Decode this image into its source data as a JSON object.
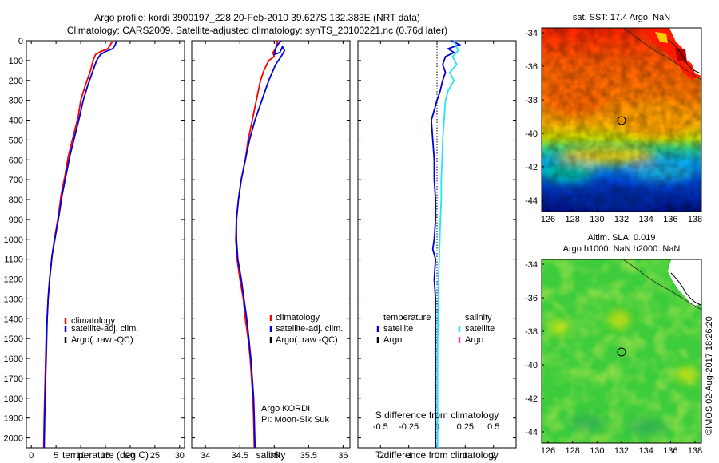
{
  "header": {
    "title_line1": "Argo profile: kordi 3900197_228 20-Feb-2010 39.627S 132.383E (NRT data)",
    "title_line2": "Climatology: CARS2009. Satellite-adjusted climatology: synTS_20100221.nc (0.76d later)"
  },
  "colors": {
    "climatology": "#ff0000",
    "satellite": "#0000dd",
    "argo": "#000000",
    "sal_satellite": "#22e5ee",
    "sal_argo": "#ff33cc"
  },
  "chart_data": [
    {
      "type": "line",
      "panel": "temperature",
      "xlabel": "temperature (deg C)",
      "ylabel": "",
      "xlim": [
        -1,
        31
      ],
      "ylim": [
        2050,
        0
      ],
      "xticks": [
        0,
        5,
        10,
        15,
        20,
        25,
        30
      ],
      "yticks": [
        0,
        100,
        200,
        300,
        400,
        500,
        600,
        700,
        800,
        900,
        1000,
        1100,
        1200,
        1300,
        1400,
        1500,
        1600,
        1700,
        1800,
        1900,
        2000
      ],
      "legend": [
        "climatology",
        "satellite-adj. clim.",
        "Argo(..raw -QC)"
      ],
      "series": [
        {
          "name": "climatology",
          "points": [
            [
              16.5,
              0
            ],
            [
              16.0,
              20
            ],
            [
              15.5,
              40
            ],
            [
              14.0,
              55
            ],
            [
              13.0,
              70
            ],
            [
              12.5,
              100
            ],
            [
              12.0,
              150
            ],
            [
              11.0,
              220
            ],
            [
              10.0,
              300
            ],
            [
              9.5,
              380
            ],
            [
              8.5,
              480
            ],
            [
              7.5,
              580
            ],
            [
              6.8,
              680
            ],
            [
              6.0,
              780
            ],
            [
              5.5,
              880
            ],
            [
              4.8,
              980
            ],
            [
              4.2,
              1080
            ],
            [
              3.7,
              1200
            ],
            [
              3.4,
              1300
            ],
            [
              3.2,
              1400
            ],
            [
              3.0,
              1500
            ],
            [
              2.9,
              1600
            ],
            [
              2.8,
              1700
            ],
            [
              2.7,
              1800
            ],
            [
              2.6,
              1900
            ],
            [
              2.5,
              2050
            ]
          ]
        },
        {
          "name": "satellite-adj. clim.",
          "points": [
            [
              17.2,
              0
            ],
            [
              17.0,
              20
            ],
            [
              16.5,
              40
            ],
            [
              15.0,
              55
            ],
            [
              14.0,
              70
            ],
            [
              13.2,
              100
            ],
            [
              12.5,
              150
            ],
            [
              11.5,
              220
            ],
            [
              10.5,
              300
            ],
            [
              9.8,
              380
            ],
            [
              8.8,
              480
            ],
            [
              7.8,
              580
            ],
            [
              7.0,
              680
            ],
            [
              6.2,
              780
            ],
            [
              5.6,
              880
            ],
            [
              4.9,
              980
            ],
            [
              4.2,
              1080
            ],
            [
              3.7,
              1200
            ],
            [
              3.4,
              1300
            ],
            [
              3.2,
              1400
            ],
            [
              3.1,
              1500
            ],
            [
              3.0,
              1600
            ],
            [
              2.9,
              1700
            ],
            [
              2.8,
              1800
            ],
            [
              2.7,
              1900
            ],
            [
              2.6,
              2050
            ]
          ]
        }
      ]
    },
    {
      "type": "line",
      "panel": "salinity",
      "xlabel": "salinity",
      "ylabel": "",
      "xlim": [
        33.8,
        36.1
      ],
      "ylim": [
        2050,
        0
      ],
      "xticks": [
        34,
        34.5,
        35,
        35.5,
        36
      ],
      "xticklabels": [
        "34",
        "34.5",
        "35",
        "35.5",
        "36"
      ],
      "legend": [
        "climatology",
        "satellite-adj. clim.",
        "Argo(..raw -QC)"
      ],
      "annotation_line1": "Argo KORDI",
      "annotation_line2": "PI: Moon-Sik Suk",
      "series": [
        {
          "name": "climatology",
          "points": [
            [
              35.05,
              0
            ],
            [
              35.02,
              40
            ],
            [
              34.98,
              60
            ],
            [
              35.0,
              80
            ],
            [
              34.92,
              100
            ],
            [
              34.85,
              150
            ],
            [
              34.8,
              200
            ],
            [
              34.74,
              300
            ],
            [
              34.68,
              400
            ],
            [
              34.62,
              500
            ],
            [
              34.58,
              600
            ],
            [
              34.52,
              700
            ],
            [
              34.48,
              800
            ],
            [
              34.45,
              900
            ],
            [
              34.44,
              1000
            ],
            [
              34.46,
              1100
            ],
            [
              34.5,
              1200
            ],
            [
              34.55,
              1300
            ],
            [
              34.58,
              1400
            ],
            [
              34.62,
              1500
            ],
            [
              34.65,
              1600
            ],
            [
              34.67,
              1700
            ],
            [
              34.69,
              1800
            ],
            [
              34.7,
              1900
            ],
            [
              34.71,
              2050
            ]
          ]
        },
        {
          "name": "satellite-adj. clim.",
          "points": [
            [
              35.1,
              0
            ],
            [
              35.05,
              20
            ],
            [
              35.02,
              40
            ],
            [
              35.0,
              70
            ],
            [
              35.08,
              60
            ],
            [
              35.12,
              30
            ],
            [
              35.15,
              50
            ],
            [
              35.1,
              80
            ],
            [
              35.02,
              120
            ],
            [
              34.92,
              200
            ],
            [
              34.82,
              300
            ],
            [
              34.72,
              400
            ],
            [
              34.64,
              500
            ],
            [
              34.58,
              600
            ],
            [
              34.52,
              700
            ],
            [
              34.48,
              800
            ],
            [
              34.45,
              900
            ],
            [
              34.45,
              1000
            ],
            [
              34.47,
              1100
            ],
            [
              34.52,
              1200
            ],
            [
              34.56,
              1300
            ],
            [
              34.6,
              1400
            ],
            [
              34.63,
              1500
            ],
            [
              34.66,
              1600
            ],
            [
              34.68,
              1700
            ],
            [
              34.7,
              1800
            ],
            [
              34.71,
              1900
            ],
            [
              34.72,
              2050
            ]
          ]
        }
      ]
    },
    {
      "type": "line",
      "panel": "difference",
      "xlabel": "T difference from climatology",
      "top_xlabel": "S difference from climatology",
      "xlim": [
        -2.8,
        2.8
      ],
      "ylim": [
        2050,
        0
      ],
      "xticks": [
        -2,
        -1,
        0,
        1,
        2
      ],
      "top_xticks": [
        -0.5,
        -0.25,
        0,
        0.25,
        0.5
      ],
      "top_xticklabels": [
        "-0.5",
        "-0.25",
        "0",
        "0.25",
        "0.5"
      ],
      "legend_temperature": [
        "temperature",
        "satellite",
        "Argo"
      ],
      "legend_salinity": [
        "salinity",
        "satellite",
        "Argo"
      ],
      "series": [
        {
          "name": "satellite",
          "points": [
            [
              0.5,
              0
            ],
            [
              0.8,
              20
            ],
            [
              0.4,
              40
            ],
            [
              0.6,
              60
            ],
            [
              0.3,
              80
            ],
            [
              0.2,
              120
            ],
            [
              0.3,
              160
            ],
            [
              0.2,
              200
            ],
            [
              0.1,
              260
            ],
            [
              0.0,
              300
            ],
            [
              -0.1,
              350
            ],
            [
              -0.2,
              400
            ],
            [
              -0.15,
              500
            ],
            [
              -0.1,
              600
            ],
            [
              -0.1,
              700
            ],
            [
              -0.05,
              800
            ],
            [
              -0.05,
              900
            ],
            [
              -0.1,
              1000
            ],
            [
              -0.15,
              1050
            ],
            [
              -0.05,
              1100
            ],
            [
              -0.1,
              1200
            ],
            [
              -0.05,
              1300
            ],
            [
              -0.05,
              1400
            ],
            [
              -0.05,
              1500
            ],
            [
              -0.05,
              1600
            ],
            [
              -0.05,
              1800
            ],
            [
              -0.05,
              2050
            ]
          ]
        },
        {
          "name": "satellite",
          "points": [
            [
              0.6,
              0
            ],
            [
              0.75,
              50
            ],
            [
              0.55,
              80
            ],
            [
              0.7,
              120
            ],
            [
              0.45,
              160
            ],
            [
              0.6,
              200
            ],
            [
              0.4,
              250
            ],
            [
              0.3,
              300
            ],
            [
              0.25,
              400
            ],
            [
              0.2,
              500
            ],
            [
              0.18,
              600
            ],
            [
              0.15,
              700
            ],
            [
              0.15,
              800
            ],
            [
              0.12,
              900
            ],
            [
              0.1,
              1000
            ],
            [
              0.08,
              1100
            ],
            [
              0.05,
              1200
            ],
            [
              0.05,
              1300
            ],
            [
              0.03,
              1400
            ],
            [
              0.02,
              1600
            ],
            [
              0.02,
              1800
            ],
            [
              0.02,
              2050
            ]
          ]
        }
      ]
    }
  ],
  "maps": {
    "sst": {
      "title": "sat. SST: 17.4 Argo: NaN",
      "yticks": [
        "-34",
        "-36",
        "-38",
        "-40",
        "-42",
        "-44"
      ],
      "xticks": [
        "126",
        "128",
        "130",
        "132",
        "134",
        "136",
        "138"
      ]
    },
    "sla": {
      "title_line1": "Altim. SLA: 0.019",
      "title_line2": "Argo h1000: NaN h2000: NaN",
      "yticks": [
        "-34",
        "-36",
        "-38",
        "-40",
        "-42",
        "-44"
      ],
      "xticks": [
        "126",
        "128",
        "130",
        "132",
        "134",
        "136",
        "138"
      ]
    },
    "watermark": "©IMOS 02-Aug-2017 18:26:20"
  }
}
